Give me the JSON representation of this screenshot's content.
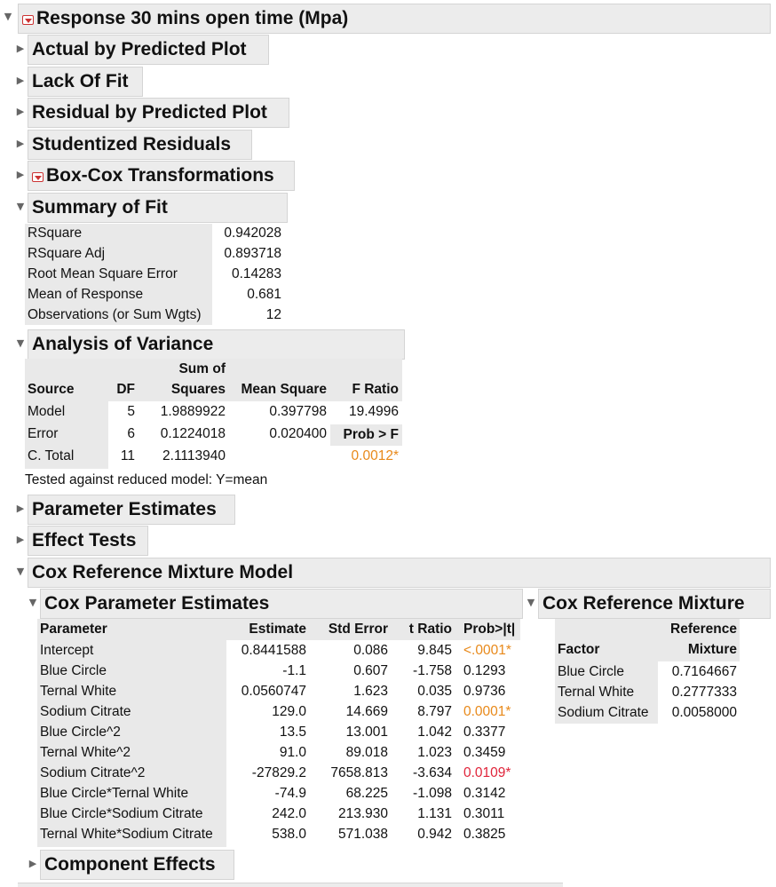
{
  "report": {
    "title": "Response 30 mins open time (Mpa)",
    "collapsed_sections": {
      "actual_by_predicted": "Actual by Predicted Plot",
      "lack_of_fit": "Lack Of Fit",
      "residual_by_predicted": "Residual by Predicted Plot",
      "studentized_residuals": "Studentized Residuals",
      "box_cox": "Box-Cox Transformations",
      "parameter_estimates": "Parameter Estimates",
      "effect_tests": "Effect Tests",
      "component_effects": "Component Effects"
    }
  },
  "summary_of_fit": {
    "title": "Summary of Fit",
    "rows": [
      {
        "label": "RSquare",
        "value": "0.942028"
      },
      {
        "label": "RSquare Adj",
        "value": "0.893718"
      },
      {
        "label": "Root Mean Square Error",
        "value": "0.14283"
      },
      {
        "label": "Mean of Response",
        "value": "0.681"
      },
      {
        "label": "Observations (or Sum Wgts)",
        "value": "12"
      }
    ]
  },
  "anova": {
    "title": "Analysis of Variance",
    "headers": {
      "source": "Source",
      "df": "DF",
      "ss_top": "Sum of",
      "ss_bottom": "Squares",
      "ms": "Mean Square",
      "f": "F Ratio",
      "prob": "Prob > F"
    },
    "rows": [
      {
        "source": "Model",
        "df": "5",
        "ss": "1.9889922",
        "ms": "0.397798",
        "f": "19.4996"
      },
      {
        "source": "Error",
        "df": "6",
        "ss": "0.1224018",
        "ms": "0.020400"
      },
      {
        "source": "C. Total",
        "df": "11",
        "ss": "2.1113940",
        "prob": "0.0012*"
      }
    ],
    "note": "Tested against reduced model: Y=mean"
  },
  "cox_model": {
    "title": "Cox Reference Mixture Model",
    "estimates": {
      "title": "Cox Parameter Estimates",
      "headers": [
        "Parameter",
        "Estimate",
        "Std Error",
        "t Ratio",
        "Prob>|t|"
      ],
      "rows": [
        {
          "param": "Intercept",
          "est": "0.8441588",
          "se": "0.086",
          "t": "9.845",
          "p": "<.0001*",
          "sig": "orange"
        },
        {
          "param": "Blue Circle",
          "est": "-1.1",
          "se": "0.607",
          "t": "-1.758",
          "p": "0.1293",
          "sig": "none"
        },
        {
          "param": "Ternal White",
          "est": "0.0560747",
          "se": "1.623",
          "t": "0.035",
          "p": "0.9736",
          "sig": "none"
        },
        {
          "param": "Sodium Citrate",
          "est": "129.0",
          "se": "14.669",
          "t": "8.797",
          "p": "0.0001*",
          "sig": "orange"
        },
        {
          "param": "Blue Circle^2",
          "est": "13.5",
          "se": "13.001",
          "t": "1.042",
          "p": "0.3377",
          "sig": "none"
        },
        {
          "param": "Ternal White^2",
          "est": "91.0",
          "se": "89.018",
          "t": "1.023",
          "p": "0.3459",
          "sig": "none"
        },
        {
          "param": "Sodium Citrate^2",
          "est": "-27829.2",
          "se": "7658.813",
          "t": "-3.634",
          "p": "0.0109*",
          "sig": "red"
        },
        {
          "param": "Blue Circle*Ternal White",
          "est": "-74.9",
          "se": "68.225",
          "t": "-1.098",
          "p": "0.3142",
          "sig": "none"
        },
        {
          "param": "Blue Circle*Sodium Citrate",
          "est": "242.0",
          "se": "213.930",
          "t": "1.131",
          "p": "0.3011",
          "sig": "none"
        },
        {
          "param": "Ternal White*Sodium Citrate",
          "est": "538.0",
          "se": "571.038",
          "t": "0.942",
          "p": "0.3825",
          "sig": "none"
        }
      ]
    },
    "reference": {
      "title": "Cox Reference Mixture",
      "headers": {
        "factor": "Factor",
        "ref_top": "Reference",
        "ref_bottom": "Mixture"
      },
      "rows": [
        {
          "factor": "Blue Circle",
          "value": "0.7164667"
        },
        {
          "factor": "Ternal White",
          "value": "0.2777333"
        },
        {
          "factor": "Sodium Citrate",
          "value": "0.0058000"
        }
      ]
    }
  },
  "colors": {
    "significant_orange": "#e8891a",
    "significant_red": "#e0243a",
    "header_bg": "#ececec",
    "cell_shade": "#e9e9e9"
  }
}
